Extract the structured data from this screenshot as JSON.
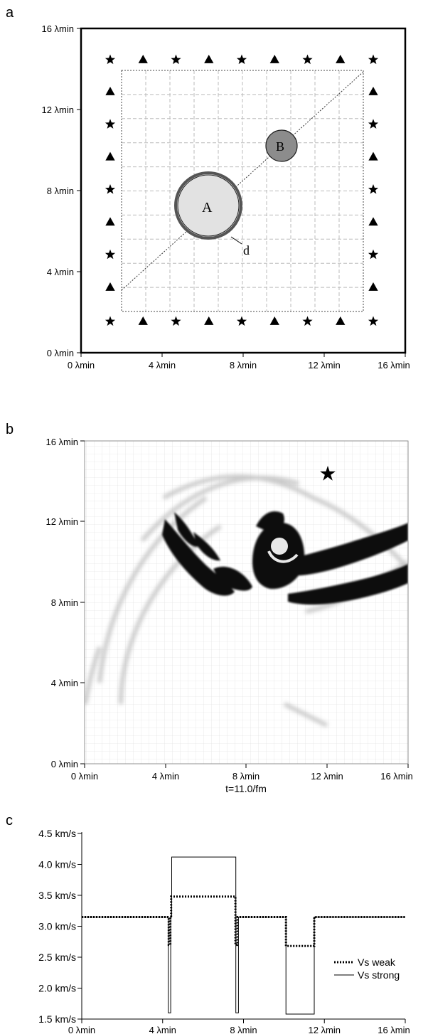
{
  "panels": {
    "a": {
      "label": "a",
      "y_ticks": [
        "0 λmin",
        "4 λmin",
        "8 λmin",
        "12 λmin",
        "16 λmin"
      ],
      "x_ticks": [
        "0 λmin",
        "4 λmin",
        "8 λmin",
        "12 λmin",
        "16 λmin"
      ],
      "labels": {
        "A": "A",
        "B": "B",
        "d": "d"
      },
      "receivers": {
        "top": [
          "star",
          "triangle",
          "star",
          "triangle",
          "star",
          "triangle",
          "star",
          "triangle",
          "star"
        ],
        "bottom": [
          "star",
          "triangle",
          "star",
          "triangle",
          "star",
          "triangle",
          "star",
          "triangle",
          "star"
        ],
        "side": [
          "triangle",
          "star",
          "triangle",
          "star",
          "triangle",
          "star",
          "triangle"
        ]
      }
    },
    "b": {
      "label": "b",
      "y_ticks": [
        "0 λmin",
        "4 λmin",
        "8 λmin",
        "12 λmin",
        "16 λmin"
      ],
      "x_ticks": [
        "0 λmin",
        "4 λmin",
        "8 λmin",
        "12 λmin",
        "16 λmin"
      ],
      "caption": "t=11.0/fm"
    },
    "c": {
      "label": "c",
      "legend": [
        "Vs weak",
        "Vs strong"
      ]
    }
  },
  "chart_data": {
    "type": "line",
    "x": [
      0,
      4.3,
      4.35,
      4.45,
      7.6,
      7.65,
      7.75,
      10.05,
      10.1,
      11.5,
      11.55,
      16
    ],
    "x_tick_labels": [
      "0 λmin",
      "4 λmin",
      "8 λmin",
      "12 λmin",
      "16 λmin"
    ],
    "y_tick_labels": [
      "1.5 km/s",
      "2.0 km/s",
      "2.5 km/s",
      "3.0 km/s",
      "3.5 km/s",
      "4.0 km/s",
      "4.5 km/s"
    ],
    "ylim": [
      1.5,
      4.5
    ],
    "xlim": [
      0,
      16
    ],
    "series": [
      {
        "name": "Vs weak",
        "style": "dotted",
        "points": [
          [
            0,
            3.15
          ],
          [
            4.3,
            3.15
          ],
          [
            4.3,
            2.7
          ],
          [
            4.38,
            2.7
          ],
          [
            4.38,
            3.15
          ],
          [
            4.42,
            3.15
          ],
          [
            4.42,
            3.48
          ],
          [
            7.6,
            3.48
          ],
          [
            7.6,
            2.7
          ],
          [
            7.7,
            2.7
          ],
          [
            7.7,
            3.15
          ],
          [
            10.1,
            3.15
          ],
          [
            10.1,
            2.68
          ],
          [
            11.5,
            2.68
          ],
          [
            11.5,
            3.15
          ],
          [
            16,
            3.15
          ]
        ]
      },
      {
        "name": "Vs strong",
        "style": "solid",
        "points": [
          [
            0,
            3.15
          ],
          [
            4.28,
            3.15
          ],
          [
            4.28,
            1.6
          ],
          [
            4.4,
            1.6
          ],
          [
            4.4,
            3.15
          ],
          [
            4.45,
            3.15
          ],
          [
            4.45,
            4.12
          ],
          [
            7.62,
            4.12
          ],
          [
            7.62,
            1.6
          ],
          [
            7.75,
            1.6
          ],
          [
            7.75,
            3.15
          ],
          [
            10.1,
            3.15
          ],
          [
            10.1,
            1.58
          ],
          [
            11.5,
            1.58
          ],
          [
            11.5,
            3.15
          ],
          [
            16,
            3.15
          ]
        ]
      }
    ]
  }
}
